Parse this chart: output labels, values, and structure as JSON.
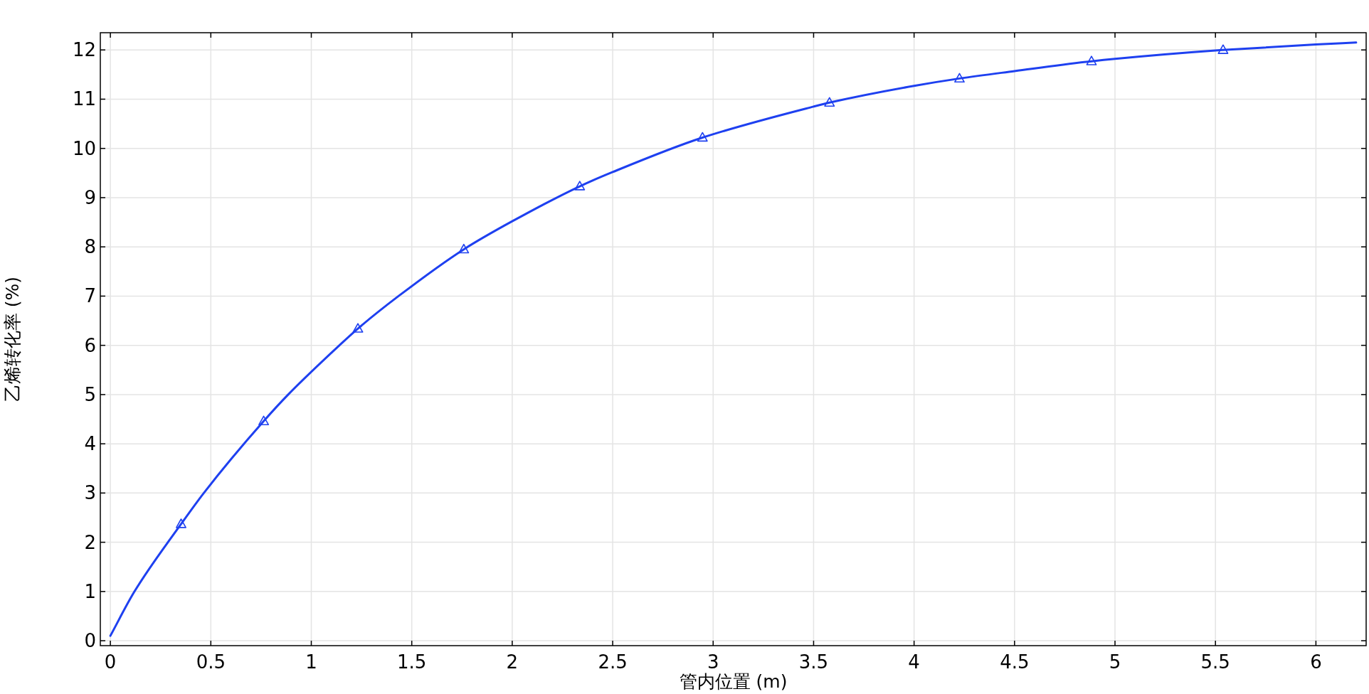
{
  "chart_data": {
    "type": "line",
    "xlabel": "管内位置 (m)",
    "ylabel": "乙烯转化率 (%)",
    "xlim": [
      -0.05,
      6.25
    ],
    "ylim": [
      -0.1,
      12.35
    ],
    "xticks": [
      0,
      0.5,
      1,
      1.5,
      2,
      2.5,
      3,
      3.5,
      4,
      4.5,
      5,
      5.5,
      6
    ],
    "yticks": [
      0,
      1,
      2,
      3,
      4,
      5,
      6,
      7,
      8,
      9,
      10,
      11,
      12
    ],
    "grid": true,
    "series": [
      {
        "type": "line",
        "color": "#1e40f0",
        "x": [
          0,
          0.12,
          0.352,
          0.465,
          0.763,
          0.885,
          1.14,
          1.232,
          1.434,
          1.759,
          2,
          2.336,
          2.5,
          2.947,
          3.5,
          3.579,
          4,
          4.226,
          4.5,
          4.883,
          5,
          5.5,
          5.538,
          6,
          6.2
        ],
        "values": [
          0.1,
          1,
          2.37,
          3,
          4.46,
          5,
          6,
          6.34,
          7,
          7.95,
          8.52,
          9.23,
          9.52,
          10.22,
          10.85,
          10.93,
          11.27,
          11.42,
          11.57,
          11.77,
          11.82,
          11.99,
          12.0,
          12.11,
          12.15
        ]
      },
      {
        "type": "scatter",
        "color": "#1e40f0",
        "marker": "triangle",
        "x": [
          0.352,
          0.763,
          1.232,
          1.759,
          2.336,
          2.947,
          3.579,
          4.226,
          4.883,
          5.538
        ],
        "values": [
          2.37,
          4.46,
          6.34,
          7.95,
          9.23,
          10.22,
          10.93,
          11.42,
          11.77,
          12.0
        ]
      }
    ]
  }
}
